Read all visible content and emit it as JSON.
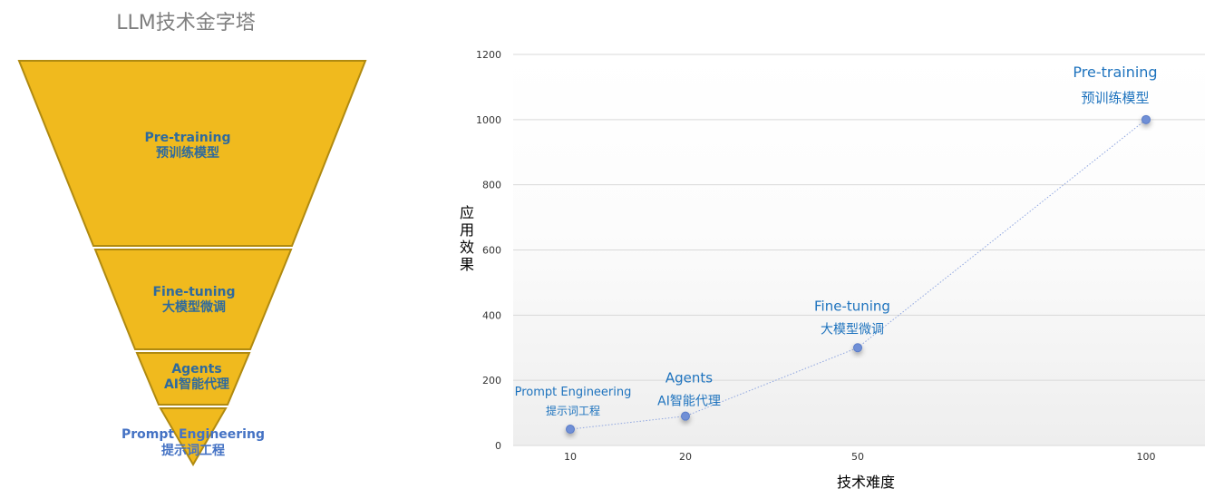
{
  "colors": {
    "funnel_fill": "#F0BA1E",
    "funnel_stroke": "#B08A10",
    "funnel_label": "#2E6A9E",
    "funnel_label_bottom": "#4472C4",
    "point_fill": "#6F8FD6",
    "point_label": "#1E73BE",
    "line": "#8FA6E0",
    "grid": "#D9D9D9",
    "title": "#7F7F7F",
    "axis_text": "#333333"
  },
  "pyramid": {
    "title": "LLM技术金字塔",
    "levels": [
      {
        "en": "Pre-training",
        "zh": "预训练模型"
      },
      {
        "en": "Fine-tuning",
        "zh": "大模型微调"
      },
      {
        "en": "Agents",
        "zh": "AI智能代理"
      },
      {
        "en": "Prompt Engineering",
        "zh": "提示词工程"
      }
    ]
  },
  "chart_data": {
    "type": "line",
    "categories": [
      "10",
      "20",
      "50",
      "100"
    ],
    "values": [
      50,
      90,
      300,
      1000
    ],
    "point_labels": [
      {
        "en": "Prompt Engineering",
        "zh": "提示词工程"
      },
      {
        "en": "Agents",
        "zh": "AI智能代理"
      },
      {
        "en": "Fine-tuning",
        "zh": "大模型微调"
      },
      {
        "en": "Pre-training",
        "zh": "预训练模型"
      }
    ],
    "xlabel": "技术难度",
    "ylabel": "应用效果",
    "ylim": [
      0,
      1200
    ],
    "yticks": [
      "0",
      "200",
      "400",
      "600",
      "800",
      "1000",
      "1200"
    ],
    "grid": true,
    "line_style": "dotted"
  }
}
